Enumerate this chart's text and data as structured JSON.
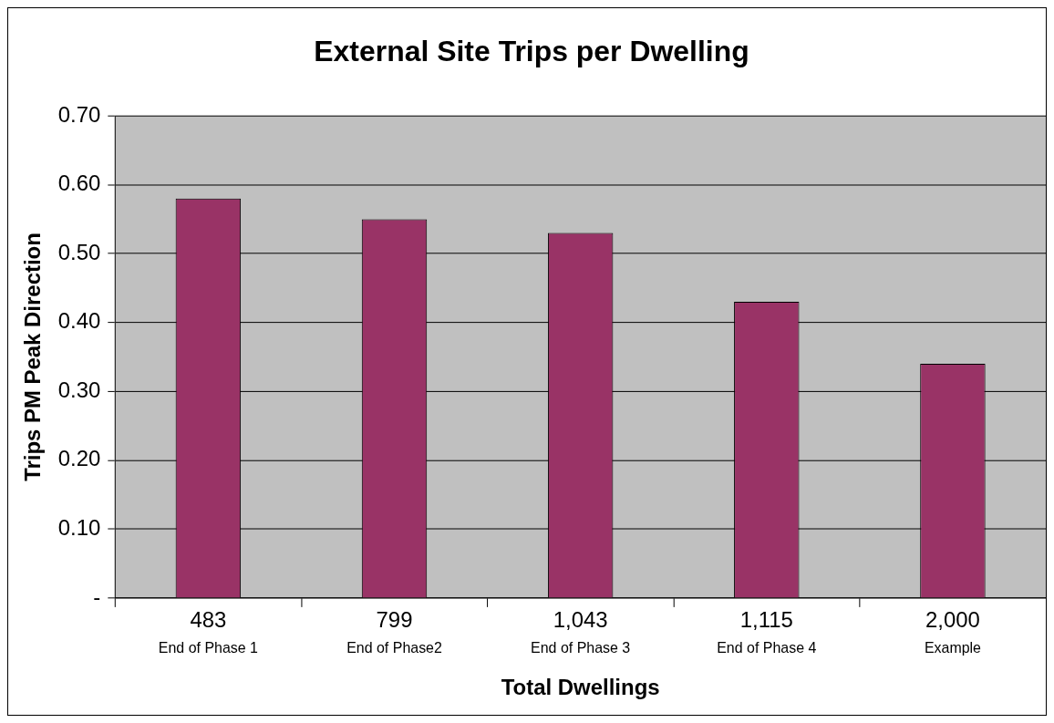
{
  "chart_data": {
    "type": "bar",
    "title": "External Site Trips per Dwelling",
    "xlabel": "Total Dwellings",
    "ylabel": "Trips PM Peak Direction",
    "categories": [
      "483\nEnd of Phase 1",
      "799\nEnd of Phase2",
      "1,043\nEnd of Phase 3",
      "1,115\nEnd of Phase 4",
      "2,000\nExample"
    ],
    "values": [
      0.58,
      0.55,
      0.53,
      0.43,
      0.34
    ],
    "color": "#993366",
    "ylim": [
      0,
      0.7
    ],
    "yticks": [
      {
        "value": 0,
        "label": "-"
      },
      {
        "value": 0.1,
        "label": "0.10"
      },
      {
        "value": 0.2,
        "label": "0.20"
      },
      {
        "value": 0.3,
        "label": "0.30"
      },
      {
        "value": 0.4,
        "label": "0.40"
      },
      {
        "value": 0.5,
        "label": "0.50"
      },
      {
        "value": 0.6,
        "label": "0.60"
      },
      {
        "value": 0.7,
        "label": "0.70"
      }
    ],
    "grid": "y",
    "legend": false
  }
}
